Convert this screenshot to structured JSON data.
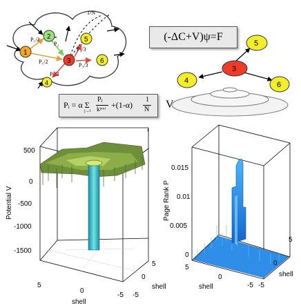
{
  "network": {
    "nodes": [
      "1",
      "2",
      "3",
      "4",
      "5",
      "6"
    ],
    "edge_labels": {
      "p1_2_a": "P₁/2",
      "p1_2_b": "P₁/2",
      "p2": "P₂",
      "p3_3_a": "P₃/3",
      "p3_3_b": "P₃/3",
      "p3_3_c": "P₃/3",
      "one_over_n": "1/N"
    }
  },
  "formulas": {
    "schrodinger": "(-ΔC+V)ψ=F",
    "pagerank_lhs": "Pᵢ = α Σ",
    "pagerank_frac_num": "Pⱼ",
    "pagerank_frac_den": "kʲᵒᵘᵗ",
    "pagerank_sum_sub": "j→i",
    "pagerank_rhs": "+(1-α)",
    "pagerank_n_num": "1",
    "pagerank_n_den": "N",
    "arrow_v": "V"
  },
  "tree": {
    "nodes": [
      "3",
      "4",
      "5",
      "6"
    ]
  },
  "chart_data": [
    {
      "type": "surface3d",
      "title": "",
      "ylabel": "Potential V",
      "xlabel": "shell",
      "zlabel": "shell",
      "zlim": [
        -1800,
        500
      ],
      "z_ticks": [
        "500",
        "0",
        "-500",
        "-1000",
        "-1500"
      ],
      "x_ticks": [
        "5",
        "0",
        "-5"
      ],
      "y_ticks": [
        "-5",
        "0",
        "5"
      ]
    },
    {
      "type": "surface3d",
      "title": "",
      "ylabel": "Page Rank P",
      "xlabel": "shell",
      "zlabel": "shell",
      "zlim": [
        0,
        0.015
      ],
      "z_ticks": [
        "0.015",
        "0.01",
        "0.005",
        "0"
      ],
      "x_ticks": [
        "5",
        "0",
        "-5"
      ],
      "y_ticks": [
        "-5",
        "0",
        "5"
      ]
    }
  ]
}
